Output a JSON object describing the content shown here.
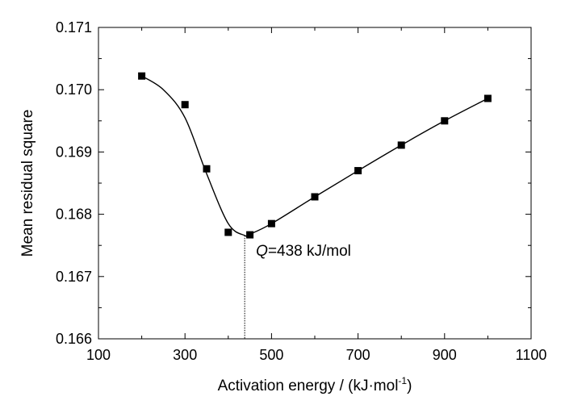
{
  "chart_data": {
    "type": "scatter",
    "xlabel": "Activation energy / (kJ·mol",
    "xlabel_sup": "-1",
    "xlabel_end": ")",
    "ylabel": "Mean residual square",
    "xlim": [
      100,
      1100
    ],
    "ylim": [
      0.166,
      0.171
    ],
    "x_ticks": [
      100,
      300,
      500,
      700,
      900,
      1100
    ],
    "x_tick_labels": [
      "100",
      "300",
      "500",
      "700",
      "900",
      "1100"
    ],
    "y_ticks": [
      0.166,
      0.167,
      0.168,
      0.169,
      0.17,
      0.171
    ],
    "y_tick_labels": [
      "0.166",
      "0.167",
      "0.168",
      "0.169",
      "0.170",
      "0.171"
    ],
    "grid": false,
    "series": [
      {
        "x": [
          200,
          300,
          350,
          400,
          450,
          500,
          600,
          700,
          800,
          900,
          1000
        ],
        "y": [
          0.17022,
          0.16976,
          0.16873,
          0.16771,
          0.16767,
          0.16785,
          0.16828,
          0.1687,
          0.16911,
          0.1695,
          0.16986
        ],
        "marker": "square",
        "color": "#000000"
      }
    ],
    "fit_curve": {
      "x": [
        200,
        250,
        300,
        350,
        400,
        438,
        450,
        500,
        600,
        700,
        800,
        900,
        1000
      ],
      "y": [
        0.17022,
        0.17,
        0.16955,
        0.16865,
        0.16785,
        0.16766,
        0.16768,
        0.16785,
        0.16828,
        0.1687,
        0.16911,
        0.1695,
        0.16986
      ],
      "color": "#000000"
    },
    "annotation": {
      "italic": "Q",
      "text": "=438 kJ/mol",
      "x": 438,
      "y": 0.16766
    }
  }
}
